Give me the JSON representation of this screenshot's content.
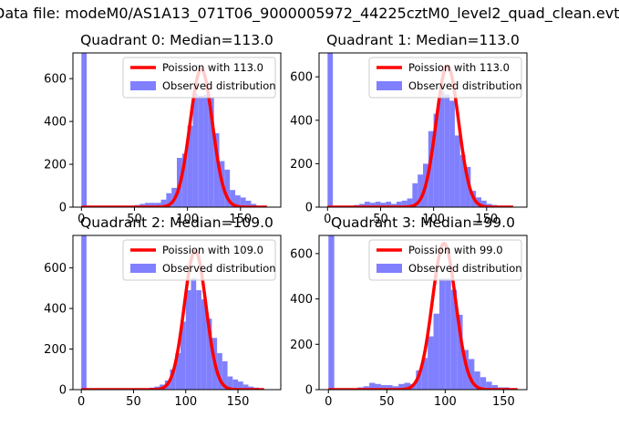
{
  "figure": {
    "title": "Data file: modeM0/AS1A13_071T06_9000005972_44225cztM0_level2_quad_clean.evt"
  },
  "colors": {
    "hist": "#8080ff",
    "curve": "#ff0000",
    "axis": "#000000",
    "background": "#ffffff"
  },
  "chart_data": [
    {
      "type": "bar",
      "title": "Quadrant 0: Median=113.0",
      "xlim": [
        -8,
        188
      ],
      "ylim": [
        0,
        720
      ],
      "xticks": [
        0,
        50,
        100,
        150
      ],
      "yticks": [
        0,
        200,
        400,
        600
      ],
      "bin_width": 5,
      "legend": {
        "position": "upper-right",
        "entries": [
          "Poission with 113.0",
          "Observed distribution"
        ]
      },
      "series": [
        {
          "name": "Observed distribution",
          "kind": "hist",
          "x": [
            0,
            45,
            50,
            55,
            60,
            65,
            70,
            75,
            80,
            85,
            90,
            95,
            100,
            105,
            110,
            115,
            120,
            125,
            130,
            135,
            140,
            145,
            150,
            155,
            160,
            165
          ],
          "values": [
            720,
            5,
            10,
            15,
            20,
            20,
            20,
            35,
            65,
            90,
            230,
            250,
            380,
            530,
            520,
            525,
            510,
            345,
            215,
            175,
            80,
            55,
            45,
            30,
            15,
            5
          ]
        },
        {
          "name": "Poission with 113.0",
          "kind": "line",
          "mean": 113,
          "peak": 645,
          "sigma": 10.6,
          "x_range": [
            0,
            175
          ]
        }
      ]
    },
    {
      "type": "bar",
      "title": "Quadrant 1: Median=113.0",
      "xlim": [
        -8,
        188
      ],
      "ylim": [
        0,
        710
      ],
      "xticks": [
        0,
        50,
        100,
        150
      ],
      "yticks": [
        0,
        200,
        400,
        600
      ],
      "bin_width": 5,
      "legend": {
        "position": "upper-right",
        "entries": [
          "Poission with 113.0",
          "Observed distribution"
        ]
      },
      "series": [
        {
          "name": "Observed distribution",
          "kind": "hist",
          "x": [
            0,
            25,
            30,
            35,
            40,
            45,
            50,
            55,
            60,
            65,
            70,
            75,
            80,
            85,
            90,
            95,
            100,
            105,
            110,
            115,
            120,
            125,
            130,
            135,
            140,
            145,
            150,
            155,
            160
          ],
          "values": [
            710,
            10,
            15,
            25,
            20,
            25,
            20,
            25,
            15,
            25,
            30,
            40,
            110,
            150,
            200,
            350,
            430,
            535,
            520,
            490,
            330,
            240,
            185,
            75,
            45,
            30,
            15,
            10,
            5
          ]
        },
        {
          "name": "Poission with 113.0",
          "kind": "line",
          "mean": 113,
          "peak": 650,
          "sigma": 10.6,
          "x_range": [
            0,
            175
          ]
        }
      ]
    },
    {
      "type": "bar",
      "title": "Quadrant 2: Median=109.0",
      "xlim": [
        -8,
        191
      ],
      "ylim": [
        0,
        760
      ],
      "xticks": [
        0,
        50,
        100,
        150
      ],
      "yticks": [
        0,
        200,
        400,
        600
      ],
      "bin_width": 5,
      "legend": {
        "position": "upper-right",
        "entries": [
          "Poission with 109.0",
          "Observed distribution"
        ]
      },
      "series": [
        {
          "name": "Observed distribution",
          "kind": "hist",
          "x": [
            0,
            60,
            65,
            70,
            75,
            80,
            85,
            90,
            95,
            100,
            105,
            110,
            115,
            120,
            125,
            130,
            135,
            140,
            145,
            150,
            155,
            160,
            165,
            170
          ],
          "values": [
            760,
            5,
            10,
            15,
            25,
            45,
            100,
            180,
            335,
            490,
            550,
            490,
            445,
            350,
            255,
            180,
            140,
            65,
            50,
            40,
            25,
            15,
            10,
            5
          ]
        },
        {
          "name": "Poission with 109.0",
          "kind": "line",
          "mean": 109,
          "peak": 685,
          "sigma": 10.4,
          "x_range": [
            0,
            175
          ]
        }
      ]
    },
    {
      "type": "bar",
      "title": "Quadrant 3: Median=99.0",
      "xlim": [
        -8,
        170
      ],
      "ylim": [
        0,
        680
      ],
      "xticks": [
        0,
        50,
        100,
        150
      ],
      "yticks": [
        0,
        200,
        400,
        600
      ],
      "bin_width": 5,
      "legend": {
        "position": "upper-right",
        "entries": [
          "Poission with 99.0",
          "Observed distribution"
        ]
      },
      "series": [
        {
          "name": "Observed distribution",
          "kind": "hist",
          "x": [
            0,
            20,
            25,
            30,
            35,
            40,
            45,
            50,
            55,
            60,
            65,
            70,
            75,
            80,
            85,
            90,
            95,
            100,
            105,
            110,
            115,
            120,
            125,
            130,
            135,
            140,
            145,
            150,
            155
          ],
          "values": [
            680,
            5,
            10,
            15,
            30,
            25,
            20,
            20,
            15,
            25,
            30,
            25,
            85,
            140,
            235,
            335,
            490,
            490,
            440,
            330,
            175,
            135,
            80,
            55,
            35,
            20,
            10,
            10,
            5
          ]
        },
        {
          "name": "Poission with 99.0",
          "kind": "line",
          "mean": 99,
          "peak": 645,
          "sigma": 10.0,
          "x_range": [
            0,
            162
          ]
        }
      ]
    }
  ]
}
